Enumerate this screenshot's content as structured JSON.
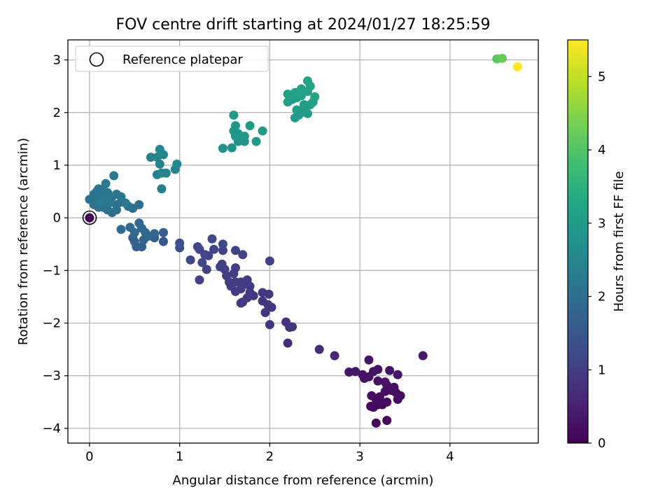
{
  "chart_data": {
    "type": "scatter",
    "title": "FOV centre drift starting at 2024/01/27 18:25:59",
    "xlabel": "Angular distance from reference (arcmin)",
    "ylabel": "Rotation from reference (arcmin)",
    "xlim": [
      -0.24,
      4.98
    ],
    "ylim": [
      -4.28,
      3.38
    ],
    "xticks": [
      0,
      1,
      2,
      3,
      4
    ],
    "xtick_labels": [
      "0",
      "1",
      "2",
      "3",
      "4"
    ],
    "yticks": [
      -4,
      -3,
      -2,
      -1,
      0,
      1,
      2,
      3
    ],
    "ytick_labels": [
      "−4",
      "−3",
      "−2",
      "−1",
      "0",
      "1",
      "2",
      "3"
    ],
    "grid": true,
    "legend": {
      "position": "upper-left",
      "entries": [
        "Reference platepar"
      ]
    },
    "reference_point": {
      "x": 0,
      "y": 0
    },
    "colorbar": {
      "label": "Hours from first FF file",
      "colormap": "viridis",
      "range": [
        0,
        5.5
      ],
      "ticks": [
        0,
        1,
        2,
        3,
        4,
        5
      ],
      "tick_labels": [
        "0",
        "1",
        "2",
        "3",
        "4",
        "5"
      ]
    },
    "points": [
      [
        0.0,
        0.0,
        0.0
      ],
      [
        3.18,
        -3.9,
        0.1
      ],
      [
        3.3,
        -3.85,
        0.1
      ],
      [
        3.15,
        -3.6,
        0.12
      ],
      [
        3.2,
        -3.55,
        0.12
      ],
      [
        3.12,
        -3.58,
        0.14
      ],
      [
        3.25,
        -3.55,
        0.15
      ],
      [
        3.3,
        -3.5,
        0.15
      ],
      [
        3.18,
        -3.45,
        0.17
      ],
      [
        3.13,
        -3.38,
        0.18
      ],
      [
        3.22,
        -3.4,
        0.18
      ],
      [
        3.42,
        -3.45,
        0.2
      ],
      [
        3.45,
        -3.38,
        0.2
      ],
      [
        3.4,
        -3.32,
        0.21
      ],
      [
        3.28,
        -3.3,
        0.22
      ],
      [
        3.35,
        -3.28,
        0.22
      ],
      [
        3.38,
        -3.22,
        0.23
      ],
      [
        3.3,
        -3.18,
        0.24
      ],
      [
        3.2,
        -3.1,
        0.25
      ],
      [
        3.05,
        -3.05,
        0.26
      ],
      [
        3.03,
        -2.98,
        0.27
      ],
      [
        3.1,
        -3.02,
        0.27
      ],
      [
        3.28,
        -3.12,
        0.28
      ],
      [
        3.15,
        -2.92,
        0.29
      ],
      [
        3.2,
        -2.88,
        0.3
      ],
      [
        3.33,
        -2.9,
        0.31
      ],
      [
        3.42,
        -2.98,
        0.31
      ],
      [
        3.1,
        -2.7,
        0.32
      ],
      [
        2.95,
        -2.92,
        0.33
      ],
      [
        2.88,
        -2.93,
        0.34
      ],
      [
        3.7,
        -2.62,
        0.35
      ],
      [
        2.72,
        -2.62,
        0.6
      ],
      [
        2.55,
        -2.5,
        0.65
      ],
      [
        2.2,
        -2.38,
        0.7
      ],
      [
        2.22,
        -2.08,
        0.75
      ],
      [
        2.18,
        -1.98,
        0.78
      ],
      [
        2.25,
        -2.07,
        0.8
      ],
      [
        2.0,
        -2.03,
        0.82
      ],
      [
        1.95,
        -1.8,
        0.85
      ],
      [
        2.02,
        -1.7,
        0.85
      ],
      [
        1.98,
        -1.65,
        0.87
      ],
      [
        1.92,
        -1.58,
        0.88
      ],
      [
        1.99,
        -1.45,
        0.89
      ],
      [
        1.92,
        -1.42,
        0.9
      ],
      [
        1.82,
        -1.48,
        0.9
      ],
      [
        1.78,
        -1.42,
        0.91
      ],
      [
        1.75,
        -1.52,
        0.92
      ],
      [
        1.7,
        -1.6,
        0.93
      ],
      [
        1.68,
        -1.62,
        0.93
      ],
      [
        1.62,
        -1.4,
        0.94
      ],
      [
        1.68,
        -1.35,
        0.95
      ],
      [
        1.7,
        -1.28,
        0.96
      ],
      [
        1.78,
        -1.3,
        0.96
      ],
      [
        1.68,
        -1.22,
        0.97
      ],
      [
        1.75,
        -1.18,
        0.98
      ],
      [
        1.62,
        -1.22,
        0.98
      ],
      [
        1.57,
        -1.3,
        0.99
      ],
      [
        1.55,
        -1.22,
        1.0
      ],
      [
        1.52,
        -1.1,
        1.0
      ],
      [
        1.6,
        -1.06,
        1.01
      ],
      [
        1.62,
        -0.95,
        1.02
      ],
      [
        1.5,
        -0.98,
        1.02
      ],
      [
        1.45,
        -0.93,
        1.03
      ],
      [
        1.47,
        -0.88,
        1.04
      ],
      [
        1.3,
        -0.98,
        1.05
      ],
      [
        1.22,
        -1.18,
        1.06
      ],
      [
        2.0,
        -0.82,
        1.07
      ],
      [
        1.7,
        -0.7,
        1.08
      ],
      [
        1.62,
        -0.62,
        1.09
      ],
      [
        1.48,
        -0.62,
        1.1
      ],
      [
        1.38,
        -0.6,
        1.1
      ],
      [
        1.32,
        -0.72,
        1.11
      ],
      [
        1.28,
        -0.7,
        1.12
      ],
      [
        1.22,
        -0.6,
        1.13
      ],
      [
        1.2,
        -0.55,
        1.14
      ],
      [
        1.25,
        -0.85,
        1.15
      ],
      [
        1.12,
        -0.8,
        1.16
      ],
      [
        1.36,
        -0.4,
        1.18
      ],
      [
        1.48,
        -0.5,
        1.2
      ],
      [
        1.0,
        -0.57,
        1.3
      ],
      [
        1.0,
        -0.48,
        1.35
      ],
      [
        0.82,
        -0.45,
        1.5
      ],
      [
        0.72,
        -0.38,
        1.6
      ],
      [
        0.82,
        -0.28,
        1.6
      ],
      [
        0.58,
        -0.55,
        1.65
      ],
      [
        0.52,
        -0.55,
        1.7
      ],
      [
        0.5,
        -0.45,
        1.72
      ],
      [
        0.48,
        -0.38,
        1.74
      ],
      [
        0.6,
        -0.42,
        1.76
      ],
      [
        0.65,
        -0.35,
        1.78
      ],
      [
        0.72,
        -0.3,
        1.8
      ],
      [
        0.62,
        -0.28,
        1.82
      ],
      [
        0.58,
        -0.2,
        1.84
      ],
      [
        0.55,
        -0.1,
        1.86
      ],
      [
        0.5,
        -0.28,
        1.88
      ],
      [
        0.45,
        -0.18,
        1.9
      ],
      [
        0.35,
        -0.22,
        1.92
      ],
      [
        0.55,
        0.25,
        1.95
      ],
      [
        0.48,
        0.18,
        1.96
      ],
      [
        0.43,
        0.22,
        1.98
      ],
      [
        0.35,
        0.3,
        2.0
      ],
      [
        0.3,
        0.25,
        2.01
      ],
      [
        0.3,
        0.15,
        2.02
      ],
      [
        0.25,
        0.1,
        2.03
      ],
      [
        0.2,
        0.15,
        2.04
      ],
      [
        0.15,
        0.2,
        2.05
      ],
      [
        0.1,
        0.2,
        2.06
      ],
      [
        0.05,
        0.25,
        2.07
      ],
      [
        0.0,
        0.35,
        2.08
      ],
      [
        0.05,
        0.38,
        2.09
      ],
      [
        0.1,
        0.42,
        2.1
      ],
      [
        0.05,
        0.45,
        2.11
      ],
      [
        0.08,
        0.5,
        2.12
      ],
      [
        0.1,
        0.55,
        2.13
      ],
      [
        0.15,
        0.52,
        2.14
      ],
      [
        0.2,
        0.48,
        2.15
      ],
      [
        0.15,
        0.38,
        2.16
      ],
      [
        0.2,
        0.35,
        2.17
      ],
      [
        0.25,
        0.4,
        2.18
      ],
      [
        0.3,
        0.45,
        2.19
      ],
      [
        0.35,
        0.4,
        2.2
      ],
      [
        0.22,
        0.28,
        2.2
      ],
      [
        0.4,
        0.28,
        2.21
      ],
      [
        0.12,
        0.3,
        2.22
      ],
      [
        0.18,
        0.65,
        2.23
      ],
      [
        0.27,
        0.8,
        2.24
      ],
      [
        0.8,
        0.55,
        2.3
      ],
      [
        0.68,
        1.15,
        2.35
      ],
      [
        0.75,
        0.82,
        2.38
      ],
      [
        0.78,
        1.02,
        2.4
      ],
      [
        0.8,
        0.85,
        2.42
      ],
      [
        0.85,
        0.85,
        2.44
      ],
      [
        0.75,
        1.15,
        2.46
      ],
      [
        0.82,
        1.2,
        2.48
      ],
      [
        0.78,
        1.3,
        2.5
      ],
      [
        0.95,
        0.92,
        2.52
      ],
      [
        0.97,
        1.02,
        2.54
      ],
      [
        1.48,
        1.32,
        2.75
      ],
      [
        1.58,
        1.33,
        2.78
      ],
      [
        1.65,
        1.45,
        2.8
      ],
      [
        1.72,
        1.45,
        2.82
      ],
      [
        1.68,
        1.5,
        2.84
      ],
      [
        1.62,
        1.55,
        2.86
      ],
      [
        1.6,
        1.65,
        2.88
      ],
      [
        1.65,
        1.6,
        2.9
      ],
      [
        1.72,
        1.55,
        2.9
      ],
      [
        1.62,
        1.75,
        2.92
      ],
      [
        1.85,
        1.45,
        2.94
      ],
      [
        1.78,
        1.75,
        2.95
      ],
      [
        1.92,
        1.65,
        2.96
      ],
      [
        1.6,
        1.95,
        2.97
      ],
      [
        2.28,
        1.9,
        3.0
      ],
      [
        2.32,
        1.95,
        3.01
      ],
      [
        2.35,
        2.0,
        3.02
      ],
      [
        2.42,
        1.98,
        3.03
      ],
      [
        2.3,
        2.05,
        3.04
      ],
      [
        2.4,
        2.08,
        3.05
      ],
      [
        2.38,
        2.15,
        3.06
      ],
      [
        2.45,
        2.15,
        3.07
      ],
      [
        2.48,
        2.2,
        3.08
      ],
      [
        2.2,
        2.2,
        3.09
      ],
      [
        2.25,
        2.25,
        3.1
      ],
      [
        2.3,
        2.28,
        3.11
      ],
      [
        2.35,
        2.32,
        3.12
      ],
      [
        2.2,
        2.35,
        3.13
      ],
      [
        2.42,
        2.4,
        3.14
      ],
      [
        2.35,
        2.45,
        3.15
      ],
      [
        2.45,
        2.5,
        3.16
      ],
      [
        2.42,
        2.6,
        3.17
      ],
      [
        2.28,
        2.38,
        3.18
      ],
      [
        2.5,
        2.3,
        3.19
      ],
      [
        4.52,
        3.02,
        4.1
      ],
      [
        4.58,
        3.03,
        4.2
      ],
      [
        4.75,
        2.87,
        5.5
      ]
    ]
  }
}
